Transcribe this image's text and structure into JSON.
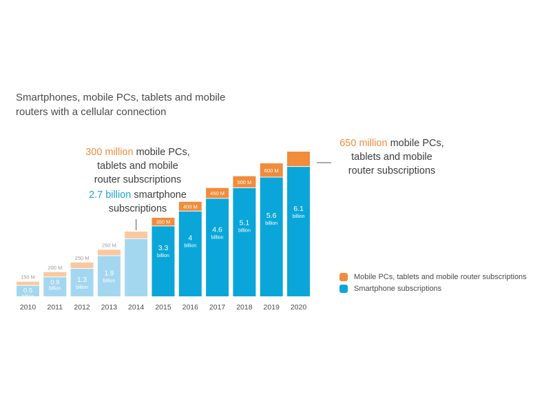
{
  "chart_data": {
    "type": "bar",
    "stacked": true,
    "title": "Smartphones, mobile PCs, tablets and mobile routers with a cellular connection",
    "categories": [
      "2010",
      "2011",
      "2012",
      "2013",
      "2014",
      "2015",
      "2016",
      "2017",
      "2018",
      "2019",
      "2020"
    ],
    "series": [
      {
        "name": "Smartphone subscriptions",
        "color": "#0aa6d9",
        "light_color": "#a3d7ef",
        "values": [
          0.5,
          0.9,
          1.3,
          1.9,
          2.7,
          3.3,
          4,
          4.6,
          5.1,
          5.6,
          6.1
        ],
        "unit": "billion",
        "labels": [
          "0.5",
          "0.9",
          "1.3",
          "1.9",
          "",
          "3.3",
          "4",
          "4.6",
          "5.1",
          "5.6",
          "6.1"
        ],
        "label_unit": "billion"
      },
      {
        "name": "Mobile PCs, tablets and mobile router subscriptions",
        "color": "#f08c3c",
        "light_color": "#fac8a0",
        "values": [
          150,
          200,
          250,
          250,
          300,
          350,
          400,
          450,
          500,
          600,
          650
        ],
        "unit": "million",
        "labels": [
          "150 M",
          "200 M",
          "250 M",
          "250 M",
          "",
          "350 M",
          "400 M",
          "450 M",
          "500 M",
          "600 M",
          ""
        ]
      }
    ],
    "historical_count": 5,
    "legend_position": "right"
  },
  "callouts": {
    "pc_2014_value": "300 million",
    "pc_2014_rest1": " mobile PCs,",
    "pc_2014_line2": "tablets and mobile",
    "pc_2014_line3": "router subscriptions",
    "sp_2014_value": "2.7 billion",
    "sp_2014_rest1": " smartphone",
    "sp_2014_line2": "subscriptions",
    "pc_2020_value": "650 million",
    "pc_2020_rest1": " mobile PCs,",
    "pc_2020_line2": "tablets and mobile",
    "pc_2020_line3": "router subscriptions"
  },
  "legend": {
    "mobile_label": "Mobile PCs, tablets and mobile router subscriptions",
    "smart_label": "Smartphone subscriptions"
  }
}
